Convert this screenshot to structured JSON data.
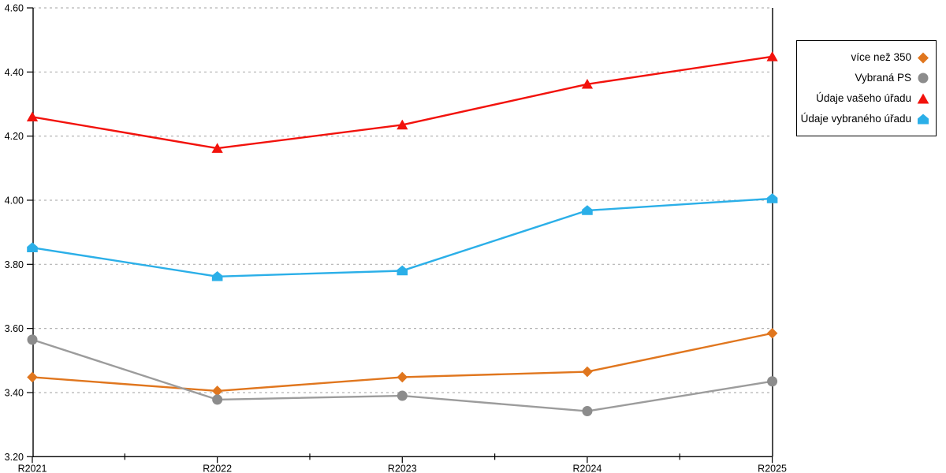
{
  "chart_data": {
    "type": "line",
    "title": "",
    "xlabel": "",
    "ylabel": "",
    "categories": [
      "R2021",
      "R2022",
      "R2023",
      "R2024",
      "R2025"
    ],
    "series": [
      {
        "name": "více než 350",
        "marker": "diamond",
        "color": "#E0761E",
        "values": [
          3.448,
          3.405,
          3.448,
          3.465,
          3.585
        ]
      },
      {
        "name": "Vybraná PS",
        "marker": "circle",
        "color": "#8C8C8C",
        "line_color": "#9C9C9C",
        "values": [
          3.565,
          3.378,
          3.39,
          3.342,
          3.435
        ]
      },
      {
        "name": "Údaje vašeho úřadu",
        "marker": "triangle",
        "color": "#F2120C",
        "values": [
          4.26,
          4.162,
          4.235,
          4.362,
          4.448
        ]
      },
      {
        "name": "Údaje vybraného úřadu",
        "marker": "pentagon",
        "color": "#2BAFE8",
        "values": [
          3.852,
          3.762,
          3.78,
          3.968,
          4.005
        ]
      }
    ],
    "ylim": [
      3.2,
      4.6
    ],
    "ytick_step": 0.2,
    "ytick_labels": [
      "3.20",
      "3.40",
      "3.60",
      "3.80",
      "4.00",
      "4.20",
      "4.40",
      "4.60"
    ],
    "grid": "horizontal-dashed",
    "grid_color": "#B3B3B3",
    "axis_color": "#000000",
    "legend_position": "right",
    "background": "#FFFFFF"
  },
  "legend": {
    "items": [
      "více než 350",
      "Vybraná PS",
      "Údaje vašeho úřadu",
      "Údaje vybraného úřadu"
    ]
  }
}
